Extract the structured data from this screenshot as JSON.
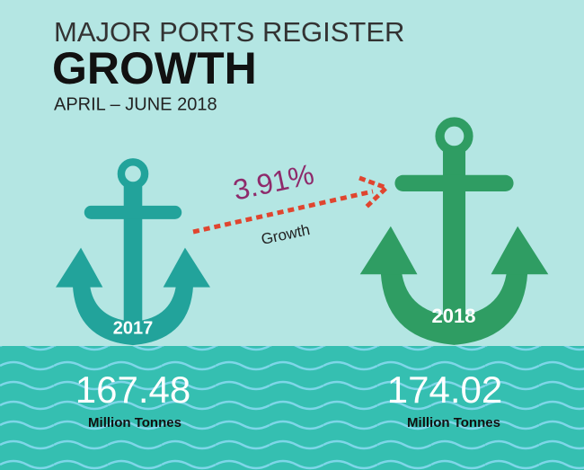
{
  "header": {
    "title_line1": "MAJOR PORTS REGISTER",
    "title_line2": "GROWTH",
    "subtitle": "APRIL – JUNE 2018"
  },
  "growth": {
    "value": "3.91%",
    "label": "Growth"
  },
  "items": [
    {
      "year": "2017",
      "value": "167.48",
      "unit": "Million Tonnes"
    },
    {
      "year": "2018",
      "value": "174.02",
      "unit": "Million Tonnes"
    }
  ]
}
